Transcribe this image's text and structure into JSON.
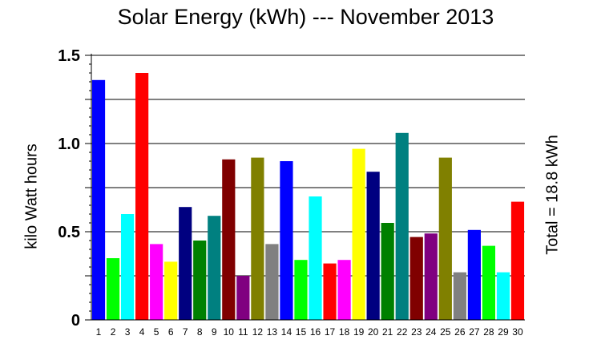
{
  "chart_data": {
    "type": "bar",
    "title": "Solar Energy (kWh) --- November 2013",
    "ylabel": "kilo Watt hours",
    "side_label": "Total = 18.8 kWh",
    "xlabel": "",
    "ylim": [
      0,
      1.5
    ],
    "yticks": [
      "0",
      "0.5",
      "1.0",
      "1.5"
    ],
    "grid": true,
    "categories": [
      "1",
      "2",
      "3",
      "4",
      "5",
      "6",
      "7",
      "8",
      "9",
      "10",
      "11",
      "12",
      "13",
      "14",
      "15",
      "16",
      "17",
      "18",
      "19",
      "20",
      "21",
      "22",
      "23",
      "24",
      "25",
      "26",
      "27",
      "28",
      "29",
      "30"
    ],
    "values": [
      1.36,
      0.35,
      0.6,
      1.4,
      0.43,
      0.33,
      0.64,
      0.45,
      0.59,
      0.91,
      0.25,
      0.92,
      0.43,
      0.9,
      0.34,
      0.7,
      0.32,
      0.34,
      0.97,
      0.84,
      0.55,
      1.06,
      0.47,
      0.49,
      0.92,
      0.27,
      0.51,
      0.42,
      0.27,
      0.67
    ],
    "colors": [
      "#0000ff",
      "#00ff00",
      "#00ffff",
      "#ff0000",
      "#ff00ff",
      "#ffff00",
      "#000080",
      "#008000",
      "#008080",
      "#800000",
      "#800080",
      "#808000",
      "#808080",
      "#0000ff",
      "#00ff00",
      "#00ffff",
      "#ff0000",
      "#ff00ff",
      "#ffff00",
      "#000080",
      "#008000",
      "#008080",
      "#800000",
      "#800080",
      "#808000",
      "#808080",
      "#0000ff",
      "#00ff00",
      "#00ffff",
      "#ff0000"
    ]
  }
}
